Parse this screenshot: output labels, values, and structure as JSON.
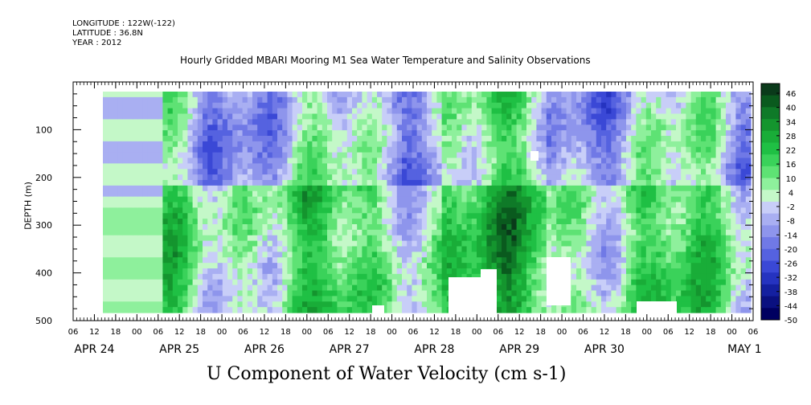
{
  "meta": {
    "longitude": "LONGITUDE : 122W(-122)",
    "latitude": "LATITUDE : 36.8N",
    "year": "YEAR : 2012"
  },
  "title": "Hourly Gridded MBARI Mooring M1 Sea Water Temperature and Salinity Observations",
  "footer_title": "U Component of Water Velocity (cm s-1)",
  "colors": {
    "strong_positive": "#0a5a1e",
    "positive": "#22c04a",
    "weak_positive": "#9af0a8",
    "weak_negative": "#aab0f0",
    "negative": "#5060e0",
    "strong_negative": "#000070"
  },
  "chart_data": {
    "type": "heatmap",
    "ylabel": "DEPTH (m)",
    "xlabel": "",
    "ylim": [
      500,
      0
    ],
    "y_ticks": [
      100,
      200,
      300,
      400,
      500
    ],
    "x_hour_labels": [
      "06",
      "12",
      "18",
      "00",
      "06",
      "12",
      "18",
      "00",
      "06",
      "12",
      "18",
      "00",
      "06",
      "12",
      "18",
      "00",
      "06",
      "12",
      "18",
      "00",
      "06",
      "12",
      "18",
      "00",
      "06",
      "12",
      "18",
      "00",
      "06",
      "12",
      "18",
      "00",
      "06"
    ],
    "x_day_labels": [
      "APR 24",
      "APR 25",
      "APR 26",
      "APR 27",
      "APR 28",
      "APR 29",
      "APR 30",
      "MAY 1"
    ],
    "colorbar": {
      "labels": [
        46,
        40,
        34,
        28,
        22,
        16,
        10,
        4,
        -2,
        -8,
        -14,
        -20,
        -26,
        -32,
        -38,
        -44,
        -50
      ],
      "colors": [
        "#0a3a1a",
        "#0a5a1e",
        "#0f7a28",
        "#14952e",
        "#19ad38",
        "#1fc044",
        "#3ad25a",
        "#5ee274",
        "#8ef09c",
        "#c4f8c8",
        "#c8cef8",
        "#a9aff2",
        "#8e95ec",
        "#7079e6",
        "#5562e0",
        "#3a48d6",
        "#2533c0",
        "#1420a0",
        "#0a1080",
        "#000060"
      ]
    }
  }
}
